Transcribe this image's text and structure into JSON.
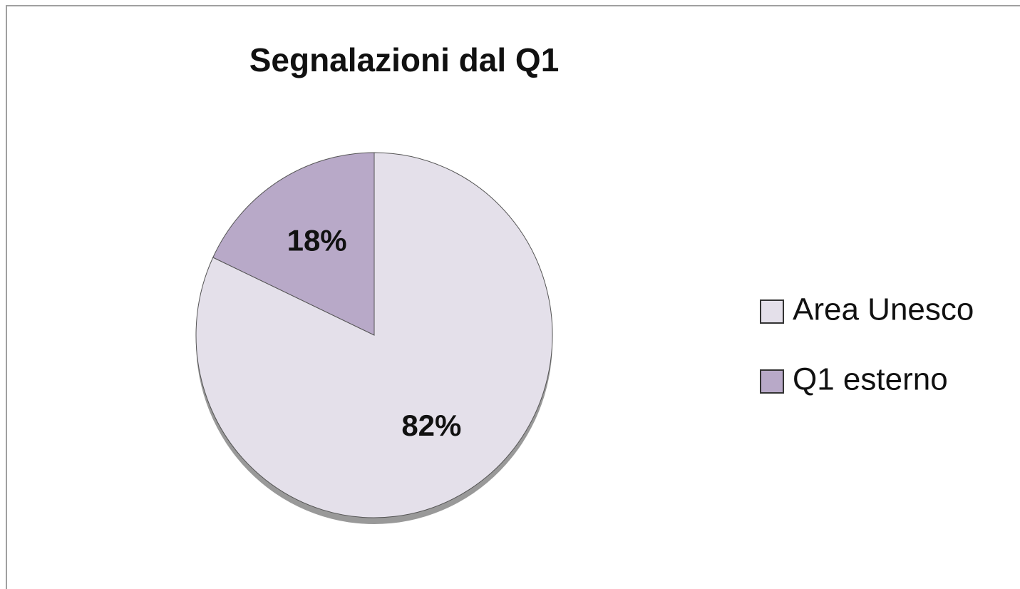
{
  "chart_data": {
    "type": "pie",
    "title": "Segnalazioni dal Q1",
    "categories": [
      "Area Unesco",
      "Q1 esterno"
    ],
    "values": [
      82,
      18
    ],
    "value_labels": [
      "82%",
      "18%"
    ],
    "colors": [
      "#e4e0ea",
      "#b8a9c8"
    ],
    "legend": "right"
  }
}
